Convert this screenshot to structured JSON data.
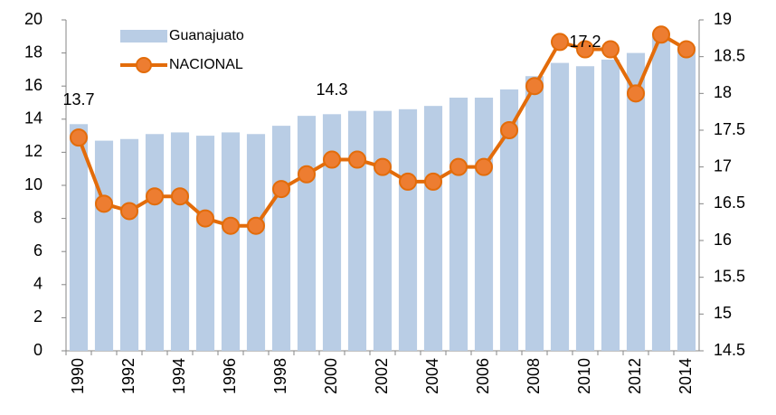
{
  "chart_data": {
    "type": "bar-line",
    "categories": [
      "1990",
      null,
      "1992",
      null,
      "1994",
      null,
      "1996",
      null,
      "1998",
      null,
      "2000",
      null,
      "2002",
      null,
      "2004",
      null,
      "2006",
      null,
      "2008",
      null,
      "2010",
      null,
      "2012",
      null,
      "2014"
    ],
    "series": [
      {
        "name": "Guanajuato",
        "type": "bar",
        "color": "#b9cde5",
        "axis": "y",
        "values": [
          13.7,
          12.7,
          12.8,
          13.1,
          13.2,
          13.0,
          13.2,
          13.1,
          13.6,
          14.2,
          14.3,
          14.5,
          14.5,
          14.6,
          14.8,
          15.3,
          15.3,
          15.8,
          16.6,
          17.4,
          17.2,
          17.6,
          18.0,
          19.0,
          18.4
        ],
        "value_labels": [
          "13.7",
          null,
          null,
          null,
          null,
          null,
          null,
          null,
          null,
          null,
          "14.3",
          null,
          null,
          null,
          null,
          null,
          null,
          null,
          null,
          null,
          "17.2",
          null,
          null,
          null,
          null
        ]
      },
      {
        "name": "NACIONAL",
        "type": "line",
        "color": "#e36c0a",
        "marker_color": "#ed7d31",
        "axis": "y2",
        "values": [
          17.4,
          16.5,
          16.4,
          16.6,
          16.6,
          16.3,
          16.2,
          16.2,
          16.7,
          16.9,
          17.1,
          17.1,
          17.0,
          16.8,
          16.8,
          17.0,
          17.0,
          17.5,
          18.1,
          18.7,
          18.6,
          18.6,
          18.0,
          18.8,
          18.6
        ]
      }
    ],
    "ylim": [
      0,
      20
    ],
    "yticks": [
      0,
      2,
      4,
      6,
      8,
      10,
      12,
      14,
      16,
      18,
      20
    ],
    "y2lim": [
      14.5,
      19
    ],
    "y2ticks": [
      14.5,
      15,
      15.5,
      16,
      16.5,
      17,
      17.5,
      18,
      18.5,
      19
    ],
    "legend": "top-left",
    "grid": false
  }
}
